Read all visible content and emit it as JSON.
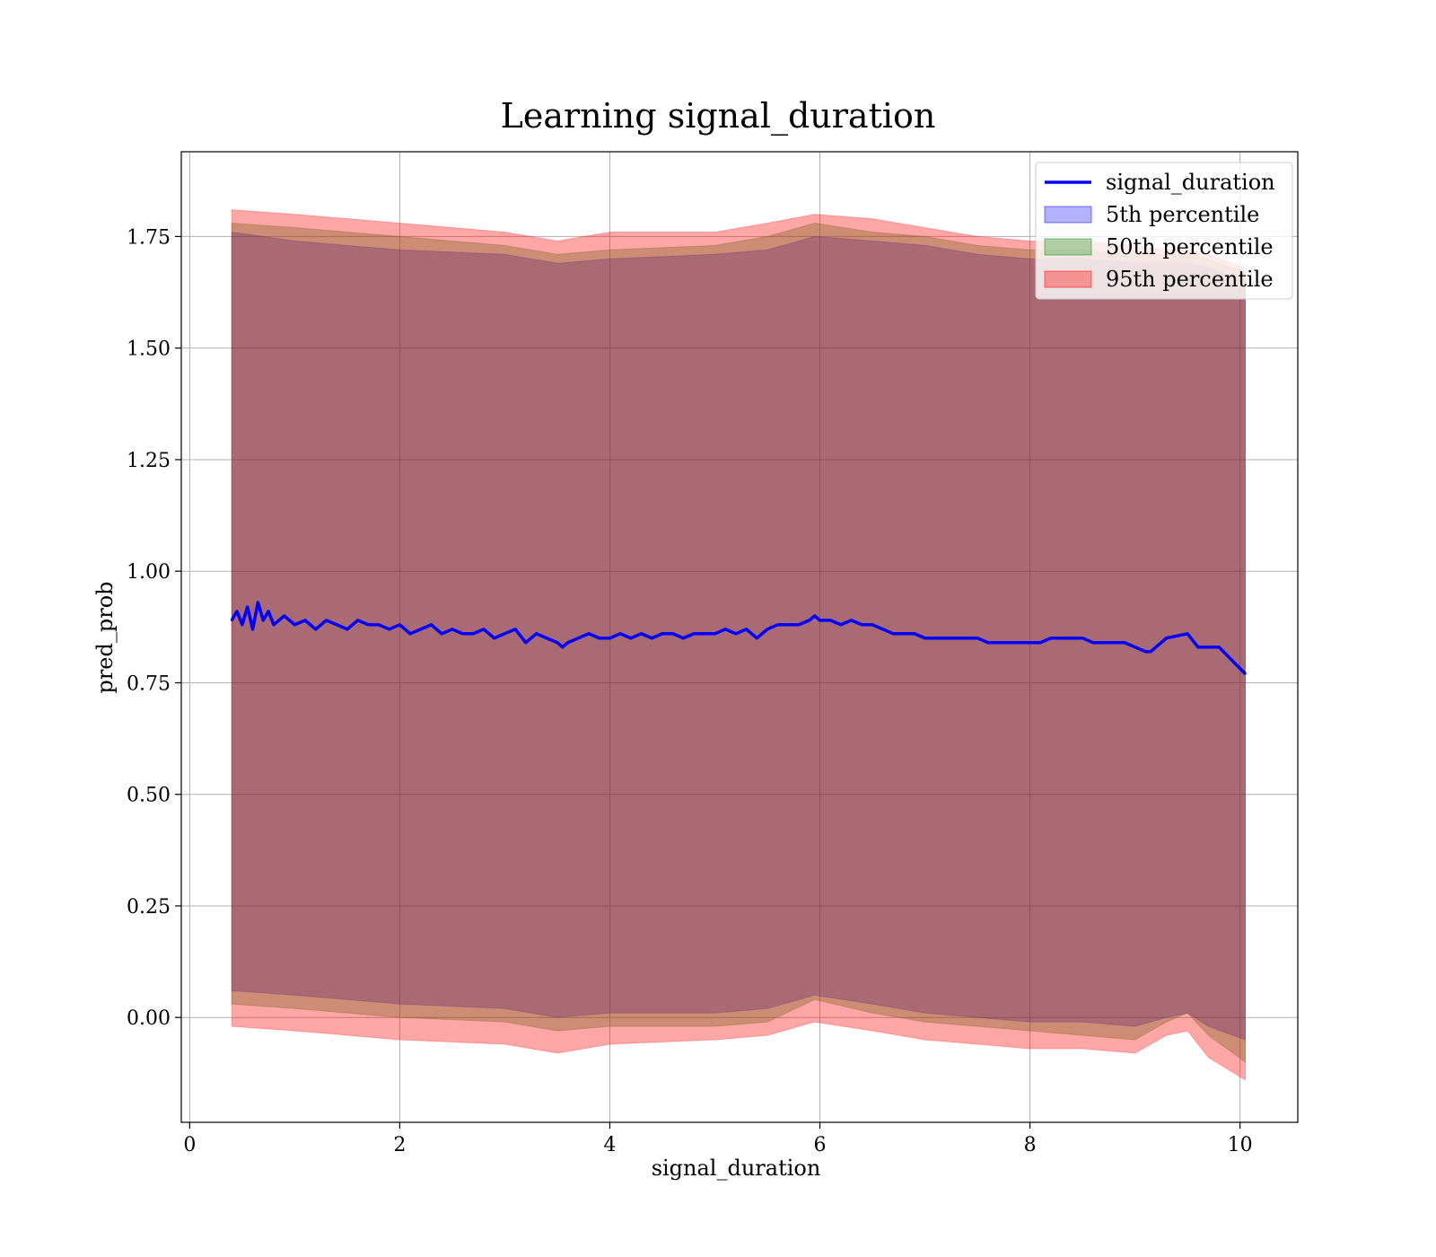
{
  "chart_data": {
    "type": "line",
    "title": "Learning signal_duration",
    "xlabel": "signal_duration",
    "ylabel": "pred_prob",
    "xlim": [
      -0.08,
      10.55
    ],
    "ylim": [
      -0.235,
      1.94
    ],
    "x_ticks": [
      0,
      2,
      4,
      6,
      8,
      10
    ],
    "x_tick_labels": [
      "0",
      "2",
      "4",
      "6",
      "8",
      "10"
    ],
    "y_ticks": [
      0.0,
      0.25,
      0.5,
      0.75,
      1.0,
      1.25,
      1.5,
      1.75
    ],
    "y_tick_labels": [
      "0.00",
      "0.25",
      "0.50",
      "0.75",
      "1.00",
      "1.25",
      "1.50",
      "1.75"
    ],
    "grid": true,
    "legend_position": "top-right",
    "series": [
      {
        "name": "signal_duration",
        "kind": "line",
        "color": "#0000ff",
        "x": [
          0.4,
          0.45,
          0.5,
          0.55,
          0.6,
          0.65,
          0.7,
          0.75,
          0.8,
          0.9,
          1.0,
          1.1,
          1.2,
          1.3,
          1.4,
          1.5,
          1.6,
          1.7,
          1.8,
          1.9,
          2.0,
          2.1,
          2.2,
          2.3,
          2.4,
          2.5,
          2.6,
          2.7,
          2.8,
          2.9,
          3.0,
          3.1,
          3.2,
          3.3,
          3.4,
          3.5,
          3.55,
          3.6,
          3.7,
          3.8,
          3.9,
          4.0,
          4.1,
          4.2,
          4.3,
          4.4,
          4.5,
          4.6,
          4.7,
          4.8,
          4.9,
          5.0,
          5.1,
          5.2,
          5.3,
          5.4,
          5.5,
          5.6,
          5.7,
          5.8,
          5.9,
          5.95,
          6.0,
          6.1,
          6.2,
          6.3,
          6.4,
          6.5,
          6.6,
          6.7,
          6.8,
          6.9,
          7.0,
          7.1,
          7.2,
          7.3,
          7.4,
          7.5,
          7.6,
          7.7,
          7.8,
          7.9,
          8.0,
          8.1,
          8.2,
          8.3,
          8.4,
          8.5,
          8.6,
          8.7,
          8.8,
          8.9,
          9.0,
          9.1,
          9.15,
          9.3,
          9.5,
          9.6,
          9.8,
          10.05
        ],
        "y": [
          0.89,
          0.91,
          0.88,
          0.92,
          0.87,
          0.93,
          0.89,
          0.91,
          0.88,
          0.9,
          0.88,
          0.89,
          0.87,
          0.89,
          0.88,
          0.87,
          0.89,
          0.88,
          0.88,
          0.87,
          0.88,
          0.86,
          0.87,
          0.88,
          0.86,
          0.87,
          0.86,
          0.86,
          0.87,
          0.85,
          0.86,
          0.87,
          0.84,
          0.86,
          0.85,
          0.84,
          0.83,
          0.84,
          0.85,
          0.86,
          0.85,
          0.85,
          0.86,
          0.85,
          0.86,
          0.85,
          0.86,
          0.86,
          0.85,
          0.86,
          0.86,
          0.86,
          0.87,
          0.86,
          0.87,
          0.85,
          0.87,
          0.88,
          0.88,
          0.88,
          0.89,
          0.9,
          0.89,
          0.89,
          0.88,
          0.89,
          0.88,
          0.88,
          0.87,
          0.86,
          0.86,
          0.86,
          0.85,
          0.85,
          0.85,
          0.85,
          0.85,
          0.85,
          0.84,
          0.84,
          0.84,
          0.84,
          0.84,
          0.84,
          0.85,
          0.85,
          0.85,
          0.85,
          0.84,
          0.84,
          0.84,
          0.84,
          0.83,
          0.82,
          0.82,
          0.85,
          0.86,
          0.83,
          0.83,
          0.77
        ]
      },
      {
        "name": "5th percentile",
        "kind": "band",
        "color": "#0000ff",
        "opacity": 0.3,
        "x": [
          0.4,
          1.0,
          2.0,
          3.0,
          3.5,
          4.0,
          5.0,
          5.5,
          5.95,
          6.5,
          7.0,
          7.5,
          8.0,
          8.5,
          9.0,
          9.3,
          9.5,
          9.7,
          10.05
        ],
        "upper": [
          1.76,
          1.74,
          1.72,
          1.71,
          1.69,
          1.7,
          1.71,
          1.72,
          1.75,
          1.74,
          1.73,
          1.71,
          1.7,
          1.7,
          1.69,
          1.69,
          1.69,
          1.68,
          1.65
        ],
        "lower": [
          0.06,
          0.05,
          0.03,
          0.02,
          0.0,
          0.01,
          0.01,
          0.02,
          0.05,
          0.03,
          0.01,
          0.0,
          -0.01,
          -0.01,
          -0.02,
          0.0,
          0.01,
          -0.02,
          -0.05
        ]
      },
      {
        "name": "50th percentile",
        "kind": "band",
        "color": "#008000",
        "opacity": 0.3,
        "x": [
          0.4,
          1.0,
          2.0,
          3.0,
          3.5,
          4.0,
          5.0,
          5.5,
          5.95,
          6.5,
          7.0,
          7.5,
          8.0,
          8.5,
          9.0,
          9.3,
          9.5,
          9.7,
          10.05
        ],
        "upper": [
          1.78,
          1.77,
          1.75,
          1.73,
          1.71,
          1.72,
          1.73,
          1.75,
          1.78,
          1.76,
          1.75,
          1.73,
          1.72,
          1.72,
          1.71,
          1.71,
          1.71,
          1.7,
          1.67
        ],
        "lower": [
          0.03,
          0.02,
          0.0,
          -0.01,
          -0.03,
          -0.02,
          -0.02,
          -0.01,
          0.04,
          0.01,
          -0.01,
          -0.02,
          -0.03,
          -0.04,
          -0.05,
          -0.01,
          0.01,
          -0.04,
          -0.1
        ]
      },
      {
        "name": "95th percentile",
        "kind": "band",
        "color": "#ff0000",
        "opacity": 0.35,
        "x": [
          0.4,
          1.0,
          2.0,
          3.0,
          3.5,
          4.0,
          5.0,
          5.5,
          5.95,
          6.5,
          7.0,
          7.5,
          8.0,
          8.5,
          9.0,
          9.3,
          9.5,
          9.7,
          10.05
        ],
        "upper": [
          1.81,
          1.8,
          1.78,
          1.76,
          1.74,
          1.76,
          1.76,
          1.78,
          1.8,
          1.79,
          1.77,
          1.75,
          1.74,
          1.74,
          1.73,
          1.72,
          1.72,
          1.71,
          1.68
        ],
        "lower": [
          -0.02,
          -0.03,
          -0.05,
          -0.06,
          -0.08,
          -0.06,
          -0.05,
          -0.04,
          -0.01,
          -0.03,
          -0.05,
          -0.06,
          -0.07,
          -0.07,
          -0.08,
          -0.04,
          -0.03,
          -0.09,
          -0.14
        ]
      }
    ]
  }
}
